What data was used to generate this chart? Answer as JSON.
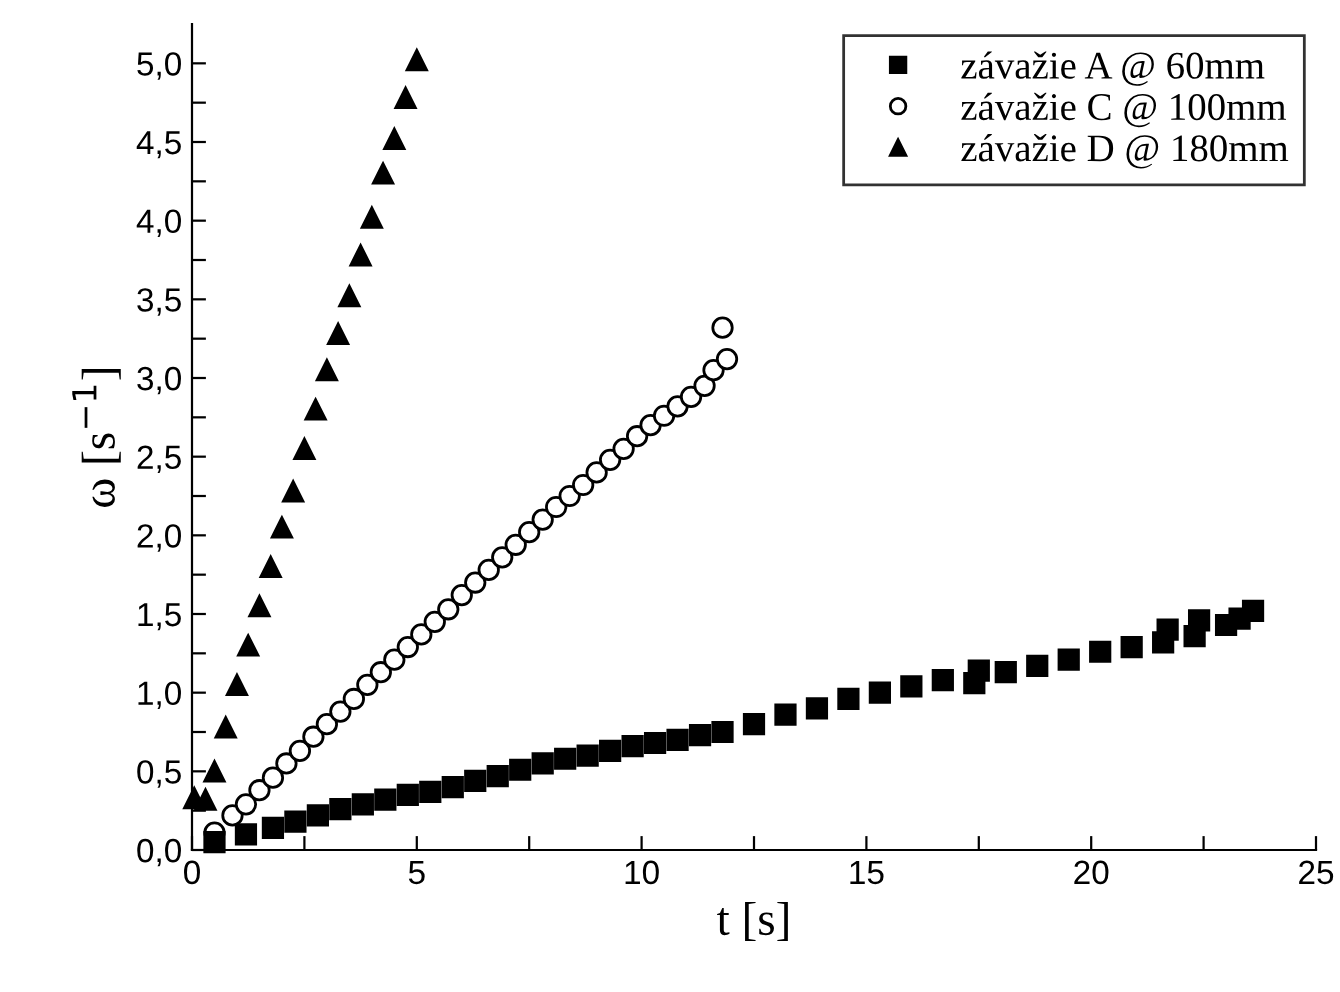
{
  "chart_data": {
    "type": "scatter",
    "xlabel": "t [s]",
    "ylabel": "ω [s$^{−1}$]",
    "xlim": [
      0,
      25
    ],
    "ylim": [
      0,
      5.25
    ],
    "xticks": [
      0,
      {
        "value": 2.5,
        "label": null
      },
      5,
      {
        "value": 7.5,
        "label": null
      },
      10,
      {
        "value": 12.5,
        "label": null
      },
      15,
      {
        "value": 17.5,
        "label": null
      },
      20,
      {
        "value": 22.5,
        "label": null
      },
      25
    ],
    "yticks": [
      {
        "value": 0,
        "label": "0,0"
      },
      {
        "value": 0.25,
        "label": null
      },
      {
        "value": 0.5,
        "label": "0,5"
      },
      {
        "value": 0.75,
        "label": null
      },
      {
        "value": 1,
        "label": "1,0"
      },
      {
        "value": 1.25,
        "label": null
      },
      {
        "value": 1.5,
        "label": "1,5"
      },
      {
        "value": 1.75,
        "label": null
      },
      {
        "value": 2,
        "label": "2,0"
      },
      {
        "value": 2.25,
        "label": null
      },
      {
        "value": 2.5,
        "label": "2,5"
      },
      {
        "value": 2.75,
        "label": null
      },
      {
        "value": 3,
        "label": "3,0"
      },
      {
        "value": 3.25,
        "label": null
      },
      {
        "value": 3.5,
        "label": "3,5"
      },
      {
        "value": 3.75,
        "label": null
      },
      {
        "value": 4,
        "label": "4,0"
      },
      {
        "value": 4.25,
        "label": null
      },
      {
        "value": 4.5,
        "label": "4,5"
      },
      {
        "value": 4.75,
        "label": null
      },
      {
        "value": 5,
        "label": "5,0"
      }
    ],
    "grid": false,
    "legend": "top right",
    "series": [
      {
        "name": "závažie A @ 60mm",
        "color": "#000000",
        "marker": "square",
        "x": [
          0.5,
          1.2,
          1.8,
          2.3,
          2.8,
          3.3,
          3.8,
          4.3,
          4.8,
          5.3,
          5.8,
          6.3,
          6.8,
          7.3,
          7.8,
          8.3,
          8.8,
          9.3,
          9.8,
          10.3,
          10.8,
          11.3,
          11.8,
          12.5,
          13.2,
          13.9,
          14.6,
          15.3,
          16,
          16.7,
          17.4,
          17.5,
          18.1,
          18.8,
          19.5,
          20.2,
          20.9,
          21.6,
          21.7,
          22.3,
          22.4,
          23,
          23.3,
          23.6
        ],
        "values": [
          0.05,
          0.1,
          0.14,
          0.18,
          0.22,
          0.26,
          0.29,
          0.32,
          0.35,
          0.37,
          0.4,
          0.44,
          0.47,
          0.51,
          0.55,
          0.58,
          0.6,
          0.63,
          0.66,
          0.68,
          0.7,
          0.73,
          0.75,
          0.8,
          0.86,
          0.9,
          0.96,
          1.0,
          1.04,
          1.08,
          1.06,
          1.14,
          1.13,
          1.17,
          1.21,
          1.26,
          1.29,
          1.32,
          1.4,
          1.36,
          1.46,
          1.43,
          1.47,
          1.52
        ]
      },
      {
        "name": "závažie C @ 100mm",
        "color": "#000000",
        "marker": "circle",
        "x": [
          0.5,
          0.9,
          1.2,
          1.5,
          1.8,
          2.1,
          2.4,
          2.7,
          3.0,
          3.3,
          3.6,
          3.9,
          4.2,
          4.5,
          4.8,
          5.1,
          5.4,
          5.7,
          6.0,
          6.3,
          6.6,
          6.9,
          7.2,
          7.5,
          7.8,
          8.1,
          8.4,
          8.7,
          9.0,
          9.3,
          9.6,
          9.9,
          10.2,
          10.5,
          10.8,
          11.1,
          11.4,
          11.6,
          11.8,
          11.9
        ],
        "values": [
          0.11,
          0.22,
          0.29,
          0.38,
          0.46,
          0.55,
          0.63,
          0.72,
          0.8,
          0.88,
          0.96,
          1.05,
          1.13,
          1.21,
          1.29,
          1.37,
          1.45,
          1.53,
          1.62,
          1.7,
          1.78,
          1.86,
          1.94,
          2.02,
          2.1,
          2.18,
          2.25,
          2.32,
          2.4,
          2.48,
          2.55,
          2.63,
          2.7,
          2.76,
          2.82,
          2.88,
          2.95,
          3.05,
          3.32,
          3.12
        ]
      },
      {
        "name": "závažie D @ 180mm",
        "color": "#000000",
        "marker": "triangle",
        "x": [
          0.05,
          0.3,
          0.5,
          0.75,
          1.0,
          1.25,
          1.5,
          1.75,
          2.0,
          2.25,
          2.5,
          2.75,
          3.0,
          3.25,
          3.5,
          3.75,
          4.0,
          4.25,
          4.5,
          4.75,
          5.0
        ],
        "values": [
          0.33,
          0.32,
          0.5,
          0.78,
          1.05,
          1.3,
          1.55,
          1.8,
          2.05,
          2.28,
          2.55,
          2.8,
          3.05,
          3.28,
          3.52,
          3.78,
          4.02,
          4.3,
          4.52,
          4.78,
          5.02
        ]
      }
    ]
  }
}
